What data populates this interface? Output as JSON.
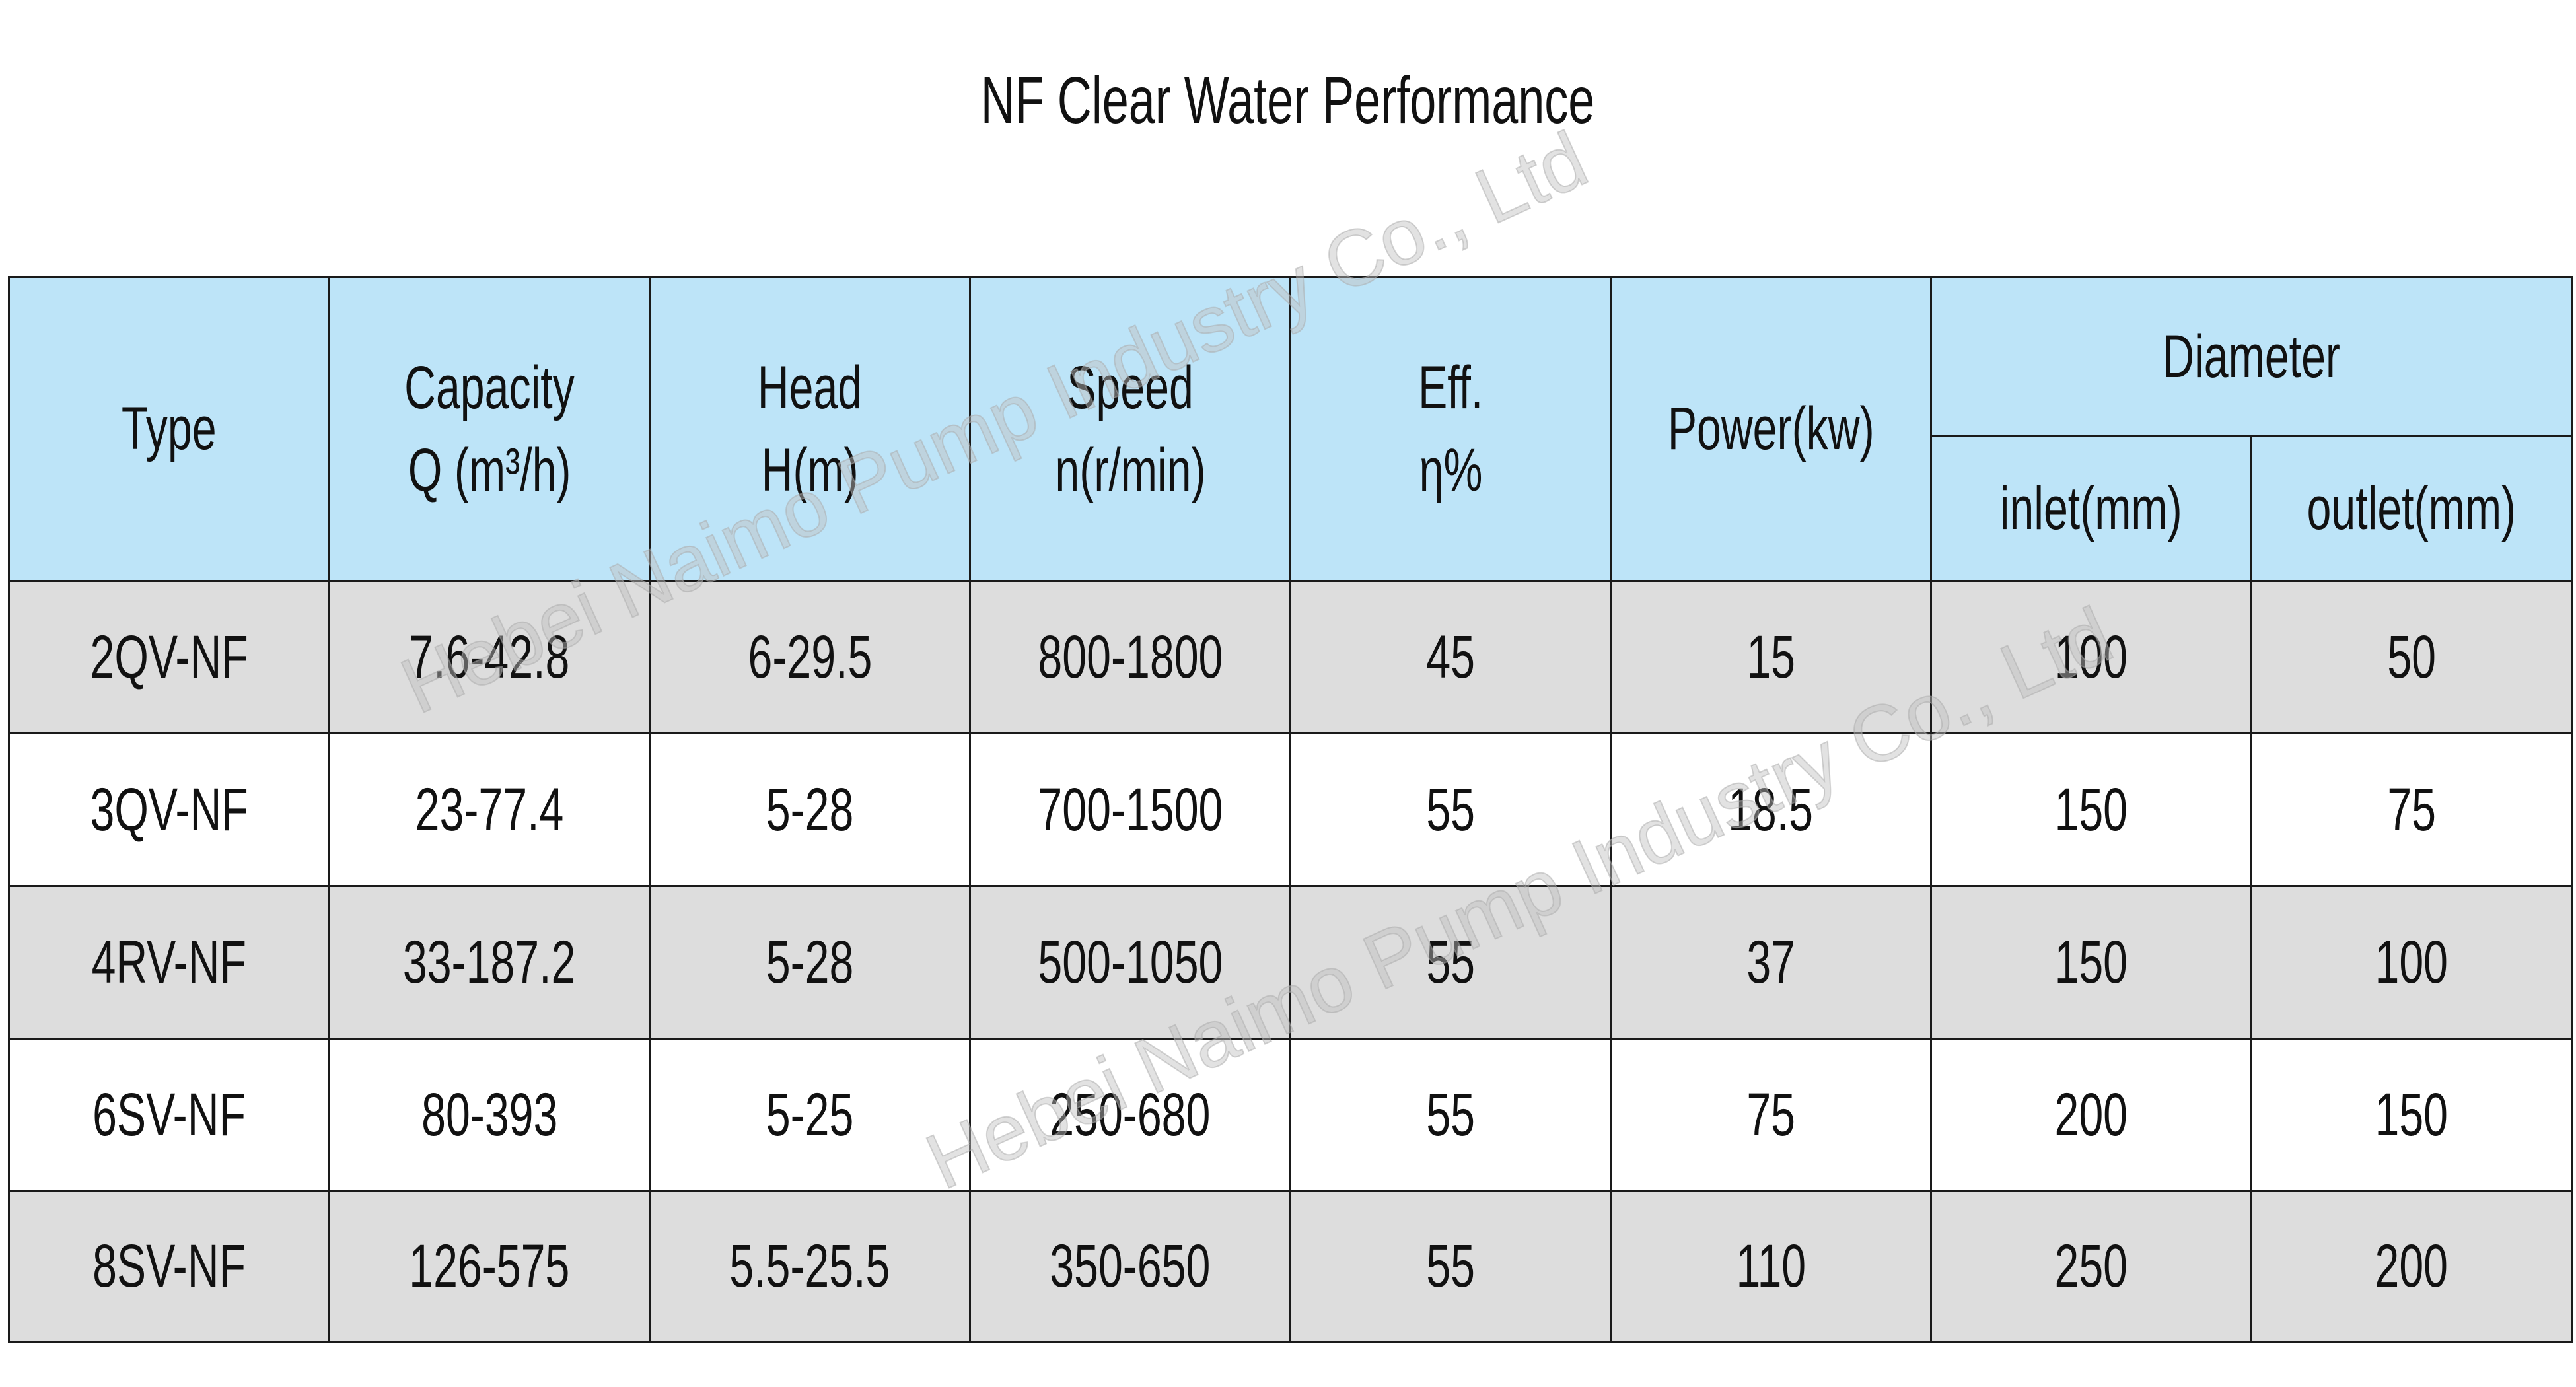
{
  "title": "NF Clear Water Performance",
  "watermark": "Hebei Naimo Pump Industry Co., Ltd",
  "table": {
    "header": {
      "type": "Type",
      "capacity": [
        "Capacity",
        "Q (m³/h)"
      ],
      "head": [
        "Head",
        "H(m)"
      ],
      "speed": [
        "Speed",
        "n(r/min)"
      ],
      "eff": [
        "Eff.",
        "η%"
      ],
      "power": "Power(kw)",
      "diameter": "Diameter",
      "inlet": "inlet(mm)",
      "outlet": "outlet(mm)"
    },
    "rows": [
      [
        "2QV-NF",
        "7.6-42.8",
        "6-29.5",
        "800-1800",
        "45",
        "15",
        "100",
        "50"
      ],
      [
        "3QV-NF",
        "23-77.4",
        "5-28",
        "700-1500",
        "55",
        "18.5",
        "150",
        "75"
      ],
      [
        "4RV-NF",
        "33-187.2",
        "5-28",
        "500-1050",
        "55",
        "37",
        "150",
        "100"
      ],
      [
        "6SV-NF",
        "80-393",
        "5-25",
        "250-680",
        "55",
        "75",
        "200",
        "150"
      ],
      [
        "8SV-NF",
        "126-575",
        "5.5-25.5",
        "350-650",
        "55",
        "110",
        "250",
        "200"
      ]
    ]
  }
}
